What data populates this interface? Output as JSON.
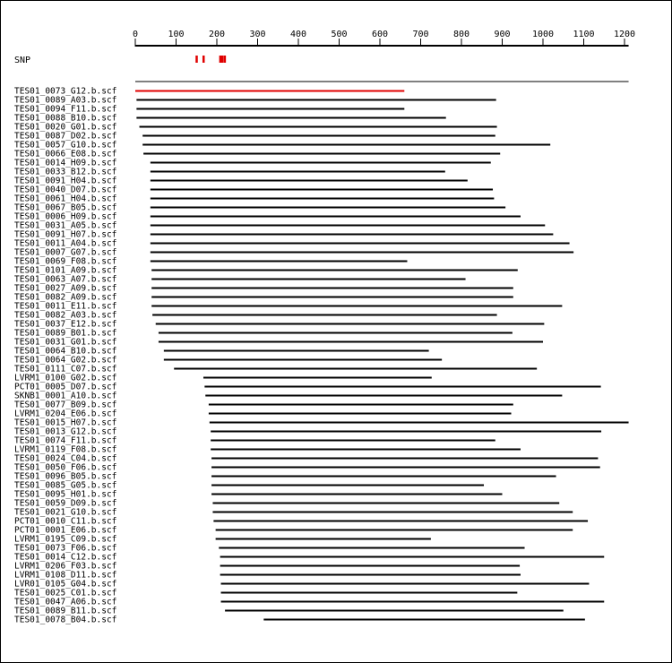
{
  "snp_track": {
    "label": "SNP",
    "color": "#e00000",
    "positions": [
      150,
      167,
      208,
      213,
      219
    ]
  },
  "axis": {
    "min": 0,
    "max": 1210,
    "ticks": [
      0,
      100,
      200,
      300,
      400,
      500,
      600,
      700,
      800,
      900,
      1000,
      1100,
      1200
    ]
  },
  "consensus": {
    "start": 0,
    "end": 1210
  },
  "highlight_color": "#e00000",
  "reads": [
    {
      "name": "TES01_0073_G12.b.scf",
      "start": 0,
      "end": 660,
      "highlight": true
    },
    {
      "name": "TES01_0089_A03.b.scf",
      "start": 3,
      "end": 885
    },
    {
      "name": "TES01_0094_F11.b.scf",
      "start": 3,
      "end": 660
    },
    {
      "name": "TES01_0088_B10.b.scf",
      "start": 3,
      "end": 762
    },
    {
      "name": "TES01_0020_G01.b.scf",
      "start": 10,
      "end": 887
    },
    {
      "name": "TES01_0087_D02.b.scf",
      "start": 18,
      "end": 883
    },
    {
      "name": "TES01_0057_G10.b.scf",
      "start": 18,
      "end": 1018
    },
    {
      "name": "TES01_0066_E08.b.scf",
      "start": 20,
      "end": 895
    },
    {
      "name": "TES01_0014_H09.b.scf",
      "start": 37,
      "end": 872
    },
    {
      "name": "TES01_0033_B12.b.scf",
      "start": 37,
      "end": 760
    },
    {
      "name": "TES01_0091_H04.b.scf",
      "start": 37,
      "end": 815
    },
    {
      "name": "TES01_0040_D07.b.scf",
      "start": 37,
      "end": 877
    },
    {
      "name": "TES01_0061_H04.b.scf",
      "start": 37,
      "end": 880
    },
    {
      "name": "TES01_0067_B05.b.scf",
      "start": 37,
      "end": 908
    },
    {
      "name": "TES01_0006_H09.b.scf",
      "start": 37,
      "end": 945
    },
    {
      "name": "TES01_0031_A05.b.scf",
      "start": 37,
      "end": 1005
    },
    {
      "name": "TES01_0091_H07.b.scf",
      "start": 37,
      "end": 1025
    },
    {
      "name": "TES01_0011_A04.b.scf",
      "start": 37,
      "end": 1065
    },
    {
      "name": "TES01_0007_G07.b.scf",
      "start": 37,
      "end": 1075
    },
    {
      "name": "TES01_0069_F08.b.scf",
      "start": 37,
      "end": 667
    },
    {
      "name": "TES01_0101_A09.b.scf",
      "start": 40,
      "end": 938
    },
    {
      "name": "TES01_0063_A07.b.scf",
      "start": 40,
      "end": 810
    },
    {
      "name": "TES01_0027_A09.b.scf",
      "start": 40,
      "end": 927
    },
    {
      "name": "TES01_0082_A09.b.scf",
      "start": 40,
      "end": 927
    },
    {
      "name": "TES01_0011_E11.b.scf",
      "start": 40,
      "end": 1047
    },
    {
      "name": "TES01_0082_A03.b.scf",
      "start": 42,
      "end": 887
    },
    {
      "name": "TES01_0037_E12.b.scf",
      "start": 50,
      "end": 1003
    },
    {
      "name": "TES01_0089_B01.b.scf",
      "start": 57,
      "end": 925
    },
    {
      "name": "TES01_0031_G01.b.scf",
      "start": 57,
      "end": 1000
    },
    {
      "name": "TES01_0064_B10.b.scf",
      "start": 70,
      "end": 720
    },
    {
      "name": "TES01_0064_G02.b.scf",
      "start": 70,
      "end": 752
    },
    {
      "name": "TES01_0111_C07.b.scf",
      "start": 95,
      "end": 985
    },
    {
      "name": "LVRM1_0100_G02.b.scf",
      "start": 167,
      "end": 727
    },
    {
      "name": "PCT01_0005_D07.b.scf",
      "start": 170,
      "end": 1142
    },
    {
      "name": "SKNB1_0001_A10.b.scf",
      "start": 172,
      "end": 1047
    },
    {
      "name": "TES01_0077_B09.b.scf",
      "start": 180,
      "end": 927
    },
    {
      "name": "LVRM1_0204_E06.b.scf",
      "start": 180,
      "end": 922
    },
    {
      "name": "TES01_0015_H07.b.scf",
      "start": 182,
      "end": 1210
    },
    {
      "name": "TES01_0013_G12.b.scf",
      "start": 185,
      "end": 1143
    },
    {
      "name": "TES01_0074_F11.b.scf",
      "start": 185,
      "end": 883
    },
    {
      "name": "LVRM1_0119_F08.b.scf",
      "start": 185,
      "end": 945
    },
    {
      "name": "TES01_0024_C04.b.scf",
      "start": 187,
      "end": 1135
    },
    {
      "name": "TES01_0050_F06.b.scf",
      "start": 187,
      "end": 1140
    },
    {
      "name": "TES01_0096_B05.b.scf",
      "start": 187,
      "end": 1032
    },
    {
      "name": "TES01_0085_G05.b.scf",
      "start": 187,
      "end": 855
    },
    {
      "name": "TES01_0095_H01.b.scf",
      "start": 187,
      "end": 900
    },
    {
      "name": "TES01_0059_D09.b.scf",
      "start": 190,
      "end": 1040
    },
    {
      "name": "TES01_0021_G10.b.scf",
      "start": 190,
      "end": 1073
    },
    {
      "name": "PCT01_0010_C11.b.scf",
      "start": 192,
      "end": 1110
    },
    {
      "name": "PCT01_0001_E06.b.scf",
      "start": 197,
      "end": 1073
    },
    {
      "name": "LVRM1_0195_C09.b.scf",
      "start": 197,
      "end": 725
    },
    {
      "name": "TES01_0073_F06.b.scf",
      "start": 205,
      "end": 955
    },
    {
      "name": "TES01_0014_C12.b.scf",
      "start": 208,
      "end": 1150
    },
    {
      "name": "LVRM1_0206_F03.b.scf",
      "start": 208,
      "end": 943
    },
    {
      "name": "LVRM1_0108_D11.b.scf",
      "start": 208,
      "end": 945
    },
    {
      "name": "LVR01_0105_G04.b.scf",
      "start": 210,
      "end": 1113
    },
    {
      "name": "TES01_0025_C01.b.scf",
      "start": 210,
      "end": 937
    },
    {
      "name": "TES01_0047_A06.b.scf",
      "start": 210,
      "end": 1150
    },
    {
      "name": "TES01_0089_B11.b.scf",
      "start": 220,
      "end": 1050
    },
    {
      "name": "TES01_0078_B04.b.scf",
      "start": 315,
      "end": 1103
    }
  ]
}
